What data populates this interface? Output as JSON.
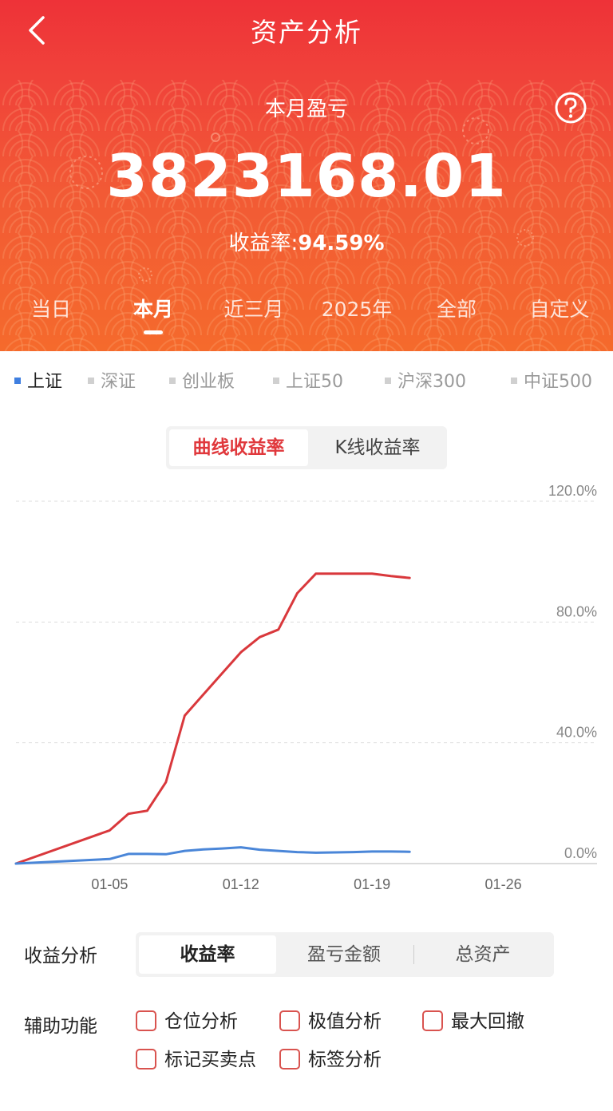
{
  "header": {
    "title": "资产分析",
    "month_label": "本月盈亏",
    "amount": "3823168.01",
    "rate_prefix": "收益率:",
    "rate_value": "94.59%"
  },
  "period_tabs": [
    {
      "label": "当日",
      "active": false
    },
    {
      "label": "本月",
      "active": true
    },
    {
      "label": "近三月",
      "active": false
    },
    {
      "label": "2025年",
      "active": false
    },
    {
      "label": "全部",
      "active": false
    },
    {
      "label": "自定义",
      "active": false
    }
  ],
  "index_tabs": [
    {
      "label": "上证",
      "active": true
    },
    {
      "label": "深证",
      "active": false
    },
    {
      "label": "创业板",
      "active": false
    },
    {
      "label": "上证50",
      "active": false
    },
    {
      "label": "沪深300",
      "active": false
    },
    {
      "label": "中证500",
      "active": false
    }
  ],
  "view_toggle": {
    "curve_label": "曲线收益率",
    "kline_label": "K线收益率",
    "active": "curve"
  },
  "chart_data": {
    "type": "line",
    "ylim": [
      0,
      120
    ],
    "y_ticks": [
      "0.0%",
      "40.0%",
      "80.0%",
      "120.0%"
    ],
    "y_tick_values": [
      0,
      40,
      80,
      120
    ],
    "x_ticks": [
      "01-05",
      "01-12",
      "01-19",
      "01-26"
    ],
    "x_tick_days": [
      5,
      12,
      19,
      26
    ],
    "x_range_days": [
      0,
      31
    ],
    "grid": true,
    "series": [
      {
        "color": "#d9383c",
        "x": [
          0,
          5,
          6,
          7,
          8,
          9,
          10,
          11,
          12,
          13,
          14,
          15,
          16,
          17,
          18,
          19,
          20,
          21
        ],
        "values": [
          0,
          11,
          16.5,
          17.5,
          27,
          49,
          56,
          63,
          70,
          75,
          77.5,
          89.5,
          96,
          96,
          96,
          96,
          95.2,
          94.6
        ]
      },
      {
        "color": "#4a86d8",
        "x": [
          0,
          5,
          6,
          7,
          8,
          9,
          10,
          11,
          12,
          13,
          14,
          15,
          16,
          17,
          18,
          19,
          20,
          21
        ],
        "values": [
          0,
          1.5,
          3.2,
          3.2,
          3.1,
          4.2,
          4.7,
          5.0,
          5.4,
          4.6,
          4.2,
          3.8,
          3.6,
          3.7,
          3.8,
          4.0,
          4.0,
          3.9
        ]
      }
    ]
  },
  "analysis": {
    "label": "收益分析",
    "options": [
      "收益率",
      "盈亏金额",
      "总资产"
    ],
    "active_index": 0
  },
  "aux": {
    "label": "辅助功能",
    "items": [
      "仓位分析",
      "极值分析",
      "最大回撤",
      "标记买卖点",
      "标签分析"
    ]
  },
  "colors": {
    "brand_red": "#ee3238",
    "accent_orange": "#f56a2c",
    "series_red": "#d9383c",
    "series_blue": "#4a86d8",
    "index_active_dot": "#3f7fe0"
  },
  "icons": {
    "back": "chevron-left-icon",
    "help": "question-circle-icon"
  }
}
